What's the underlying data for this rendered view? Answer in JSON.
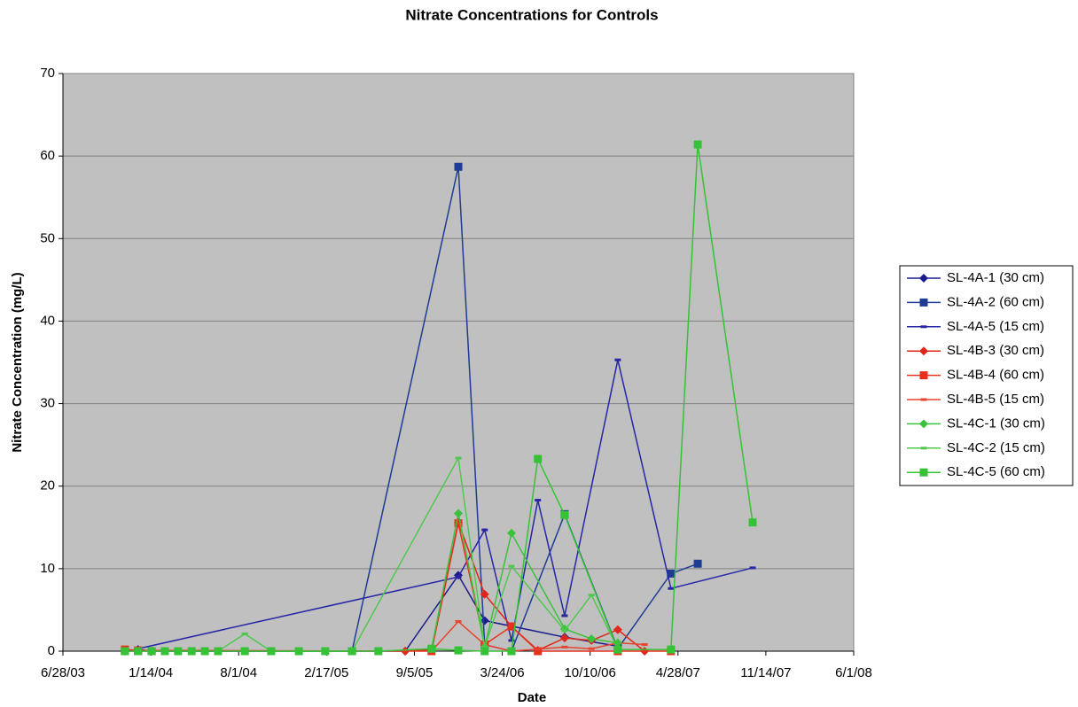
{
  "chart_data": {
    "type": "line",
    "title": "Nitrate Concentrations for Controls",
    "x_label": "Date",
    "y_label": "Nitrate Concentration (mg/L)",
    "xlim": [
      "2003-06-28",
      "2008-06-01"
    ],
    "xticks": [
      {
        "value": "2003-06-28",
        "label": "6/28/03"
      },
      {
        "value": "2004-01-14",
        "label": "1/14/04"
      },
      {
        "value": "2004-08-01",
        "label": "8/1/04"
      },
      {
        "value": "2005-02-17",
        "label": "2/17/05"
      },
      {
        "value": "2005-09-05",
        "label": "9/5/05"
      },
      {
        "value": "2006-03-24",
        "label": "3/24/06"
      },
      {
        "value": "2006-10-10",
        "label": "10/10/06"
      },
      {
        "value": "2007-04-28",
        "label": "4/28/07"
      },
      {
        "value": "2007-11-14",
        "label": "11/14/07"
      },
      {
        "value": "2008-06-01",
        "label": "6/1/08"
      }
    ],
    "ylim": [
      0,
      70
    ],
    "yticks": [
      0,
      10,
      20,
      30,
      40,
      50,
      60,
      70
    ],
    "grid": true,
    "legend": "right",
    "series": [
      {
        "name": "SL-4A-1 (30 cm)",
        "color": "#1c1c8f",
        "marker": "diamond",
        "x": [
          "2003-11-16",
          "2003-12-16",
          "2004-01-16",
          "2005-08-15",
          "2005-12-14",
          "2006-02-12",
          "2006-08-13",
          "2006-12-12"
        ],
        "values": [
          0,
          0.2,
          0,
          0,
          9.2,
          3.7,
          1.7,
          0.6
        ]
      },
      {
        "name": "SL-4A-2 (60 cm)",
        "color": "#1f3c94",
        "marker": "square",
        "x": [
          "2003-11-16",
          "2003-12-16",
          "2004-01-16",
          "2005-04-16",
          "2005-12-14",
          "2006-02-12",
          "2006-04-14",
          "2006-08-13",
          "2006-12-12",
          "2007-04-12",
          "2007-06-12"
        ],
        "values": [
          0,
          0,
          0,
          0,
          58.7,
          0.8,
          0,
          16.6,
          0.3,
          9.4,
          10.6
        ]
      },
      {
        "name": "SL-4A-5 (15 cm)",
        "color": "#2626a6",
        "marker": "dash",
        "x": [
          "2003-12-16",
          "2005-12-14",
          "2006-02-12",
          "2006-04-14",
          "2006-06-13",
          "2006-08-13",
          "2006-12-12",
          "2007-04-12",
          "2007-10-15"
        ],
        "values": [
          0.3,
          9.0,
          14.7,
          1.3,
          18.3,
          4.3,
          35.3,
          7.6,
          10.1
        ]
      },
      {
        "name": "SL-4B-3 (30 cm)",
        "color": "#e0261b",
        "marker": "diamond",
        "x": [
          "2005-08-15",
          "2005-10-14",
          "2005-12-14",
          "2006-02-12",
          "2006-04-14",
          "2006-06-13",
          "2006-08-13",
          "2006-10-13",
          "2006-12-12",
          "2007-02-11"
        ],
        "values": [
          0,
          0.2,
          15.6,
          6.9,
          3.0,
          0.1,
          1.6,
          1.3,
          2.6,
          0
        ]
      },
      {
        "name": "SL-4B-4 (60 cm)",
        "color": "#e8301f",
        "marker": "square",
        "x": [
          "2003-11-16",
          "2003-12-16",
          "2005-10-14",
          "2005-12-14",
          "2006-02-12",
          "2006-04-14",
          "2006-06-13",
          "2006-12-12",
          "2007-04-12"
        ],
        "values": [
          0.2,
          0.1,
          0,
          15.5,
          0.8,
          3.0,
          0,
          0,
          0
        ]
      },
      {
        "name": "SL-4B-5 (15 cm)",
        "color": "#e8442f",
        "marker": "dash",
        "x": [
          "2005-10-14",
          "2005-12-14",
          "2006-02-12",
          "2006-04-14",
          "2006-08-13",
          "2006-10-13",
          "2006-12-12",
          "2007-02-11"
        ],
        "values": [
          0,
          3.6,
          0.8,
          0,
          0.5,
          0.3,
          1.0,
          0.8
        ]
      },
      {
        "name": "SL-4C-1 (30 cm)",
        "color": "#3cc13c",
        "marker": "diamond",
        "x": [
          "2005-10-14",
          "2005-12-14",
          "2006-02-12",
          "2006-04-14",
          "2006-08-13",
          "2006-10-13",
          "2006-12-12"
        ],
        "values": [
          0.3,
          16.7,
          0.5,
          14.3,
          2.7,
          1.5,
          1.0
        ]
      },
      {
        "name": "SL-4C-2 (15 cm)",
        "color": "#50c850",
        "marker": "dash",
        "x": [
          "2004-06-15",
          "2004-08-15",
          "2004-10-14",
          "2005-04-16",
          "2005-12-14",
          "2006-02-12",
          "2006-04-14",
          "2006-08-13",
          "2006-10-13",
          "2006-12-12"
        ],
        "values": [
          0,
          2.1,
          0,
          0,
          23.4,
          0.5,
          10.3,
          2.5,
          6.8,
          0.3
        ]
      },
      {
        "name": "SL-4C-5 (60 cm)",
        "color": "#36c236",
        "marker": "square",
        "x": [
          "2003-11-16",
          "2003-12-16",
          "2004-01-16",
          "2004-02-15",
          "2004-03-16",
          "2004-04-16",
          "2004-05-16",
          "2004-06-15",
          "2004-08-15",
          "2004-10-14",
          "2004-12-16",
          "2005-02-14",
          "2005-04-16",
          "2005-06-15",
          "2005-10-14",
          "2005-12-14",
          "2006-02-12",
          "2006-04-14",
          "2006-06-13",
          "2006-08-13",
          "2006-12-12",
          "2007-04-12",
          "2007-06-12",
          "2007-10-15"
        ],
        "values": [
          0,
          0,
          0,
          0,
          0,
          0,
          0,
          0,
          0,
          0,
          0,
          0,
          0,
          0,
          0.3,
          0.1,
          0,
          0,
          23.3,
          16.5,
          0.2,
          0.2,
          61.4,
          15.6
        ]
      }
    ]
  }
}
